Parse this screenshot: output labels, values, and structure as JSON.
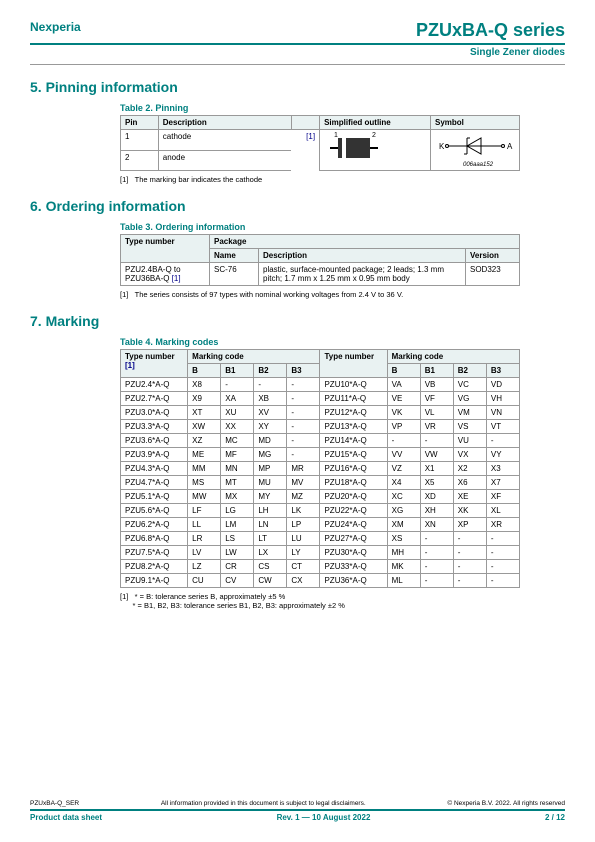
{
  "header": {
    "brand": "Nexperia",
    "title": "PZUxBA-Q series",
    "subtitle": "Single Zener diodes"
  },
  "sec5": {
    "heading": "5.  Pinning information",
    "tablecap": "Table 2. Pinning",
    "cols": {
      "pin": "Pin",
      "desc": "Description",
      "outline": "Simplified outline",
      "sym": "Symbol"
    },
    "rows": [
      {
        "pin": "1",
        "desc": "cathode",
        "ref": "[1]"
      },
      {
        "pin": "2",
        "desc": "anode"
      }
    ],
    "pkglabel": "006aaa152",
    "symK": "K",
    "symA": "A",
    "pin1": "1",
    "pin2": "2",
    "note": "The marking bar indicates the cathode",
    "noteidx": "[1]"
  },
  "sec6": {
    "heading": "6.  Ordering information",
    "tablecap": "Table 3. Ordering information",
    "cols": {
      "type": "Type number",
      "pkg": "Package",
      "name": "Name",
      "desc": "Description",
      "ver": "Version"
    },
    "row": {
      "typeA": "PZU2.4BA-Q to",
      "typeB": "PZU36BA-Q",
      "typeRef": "[1]",
      "name": "SC-76",
      "desc": "plastic, surface-mounted package; 2 leads; 1.3 mm pitch; 1.7 mm x 1.25 mm x 0.95 mm body",
      "ver": "SOD323"
    },
    "noteidx": "[1]",
    "note": "The series consists of 97 types with nominal working voltages from 2.4 V to 36 V."
  },
  "sec7": {
    "heading": "7.  Marking",
    "tablecap": "Table 4. Marking codes",
    "cols": {
      "type": "Type number",
      "mark": "Marking code",
      "b": "B",
      "b1": "B1",
      "b2": "B2",
      "b3": "B3"
    },
    "typeRef": "[1]",
    "rows": [
      {
        "l": [
          "PZU2.4*A-Q",
          "X8",
          "-",
          "-",
          "-"
        ],
        "r": [
          "PZU10*A-Q",
          "VA",
          "VB",
          "VC",
          "VD"
        ]
      },
      {
        "l": [
          "PZU2.7*A-Q",
          "X9",
          "XA",
          "XB",
          "-"
        ],
        "r": [
          "PZU11*A-Q",
          "VE",
          "VF",
          "VG",
          "VH"
        ]
      },
      {
        "l": [
          "PZU3.0*A-Q",
          "XT",
          "XU",
          "XV",
          "-"
        ],
        "r": [
          "PZU12*A-Q",
          "VK",
          "VL",
          "VM",
          "VN"
        ]
      },
      {
        "l": [
          "PZU3.3*A-Q",
          "XW",
          "XX",
          "XY",
          "-"
        ],
        "r": [
          "PZU13*A-Q",
          "VP",
          "VR",
          "VS",
          "VT"
        ]
      },
      {
        "l": [
          "PZU3.6*A-Q",
          "XZ",
          "MC",
          "MD",
          "-"
        ],
        "r": [
          "PZU14*A-Q",
          "-",
          "-",
          "VU",
          "-"
        ]
      },
      {
        "l": [
          "PZU3.9*A-Q",
          "ME",
          "MF",
          "MG",
          "-"
        ],
        "r": [
          "PZU15*A-Q",
          "VV",
          "VW",
          "VX",
          "VY"
        ]
      },
      {
        "l": [
          "PZU4.3*A-Q",
          "MM",
          "MN",
          "MP",
          "MR"
        ],
        "r": [
          "PZU16*A-Q",
          "VZ",
          "X1",
          "X2",
          "X3"
        ]
      },
      {
        "l": [
          "PZU4.7*A-Q",
          "MS",
          "MT",
          "MU",
          "MV"
        ],
        "r": [
          "PZU18*A-Q",
          "X4",
          "X5",
          "X6",
          "X7"
        ]
      },
      {
        "l": [
          "PZU5.1*A-Q",
          "MW",
          "MX",
          "MY",
          "MZ"
        ],
        "r": [
          "PZU20*A-Q",
          "XC",
          "XD",
          "XE",
          "XF"
        ]
      },
      {
        "l": [
          "PZU5.6*A-Q",
          "LF",
          "LG",
          "LH",
          "LK"
        ],
        "r": [
          "PZU22*A-Q",
          "XG",
          "XH",
          "XK",
          "XL"
        ]
      },
      {
        "l": [
          "PZU6.2*A-Q",
          "LL",
          "LM",
          "LN",
          "LP"
        ],
        "r": [
          "PZU24*A-Q",
          "XM",
          "XN",
          "XP",
          "XR"
        ]
      },
      {
        "l": [
          "PZU6.8*A-Q",
          "LR",
          "LS",
          "LT",
          "LU"
        ],
        "r": [
          "PZU27*A-Q",
          "XS",
          "-",
          "-",
          "-"
        ]
      },
      {
        "l": [
          "PZU7.5*A-Q",
          "LV",
          "LW",
          "LX",
          "LY"
        ],
        "r": [
          "PZU30*A-Q",
          "MH",
          "-",
          "-",
          "-"
        ]
      },
      {
        "l": [
          "PZU8.2*A-Q",
          "LZ",
          "CR",
          "CS",
          "CT"
        ],
        "r": [
          "PZU33*A-Q",
          "MK",
          "-",
          "-",
          "-"
        ]
      },
      {
        "l": [
          "PZU9.1*A-Q",
          "CU",
          "CV",
          "CW",
          "CX"
        ],
        "r": [
          "PZU36*A-Q",
          "ML",
          "-",
          "-",
          "-"
        ]
      }
    ],
    "noteidx": "[1]",
    "note1": "* = B: tolerance series B, approximately ±5 %",
    "note2": "* = B1, B2, B3: tolerance series B1, B2, B3: approximately ±2 %"
  },
  "footer": {
    "docid": "PZUxBA-Q_SER",
    "mid": "All information provided in this document is subject to legal disclaimers.",
    "copy": "© Nexperia B.V. 2022. All rights reserved",
    "left": "Product data sheet",
    "center": "Rev. 1 — 10 August 2022",
    "right": "2 / 12"
  }
}
